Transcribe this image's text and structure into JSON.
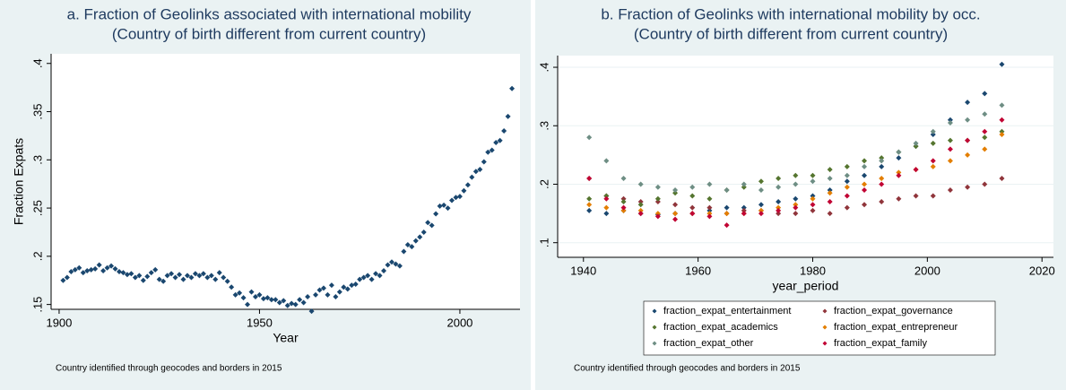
{
  "chart_data": [
    {
      "type": "scatter",
      "title": "a. Fraction of Geolinks associated with international mobility",
      "subtitle": "(Country of birth different from current country)",
      "x_label": "Year",
      "y_label": "Fraction Expats",
      "note": "Country identified through geocodes and borders in 2015",
      "color": "#1a476f",
      "grid": false,
      "xlim": [
        1898,
        2015
      ],
      "ylim": [
        0.145,
        0.41
      ],
      "xticks": [
        1900,
        1950,
        2000
      ],
      "yticks": [
        {
          "value": 0.15,
          "label": ".15"
        },
        {
          "value": 0.2,
          "label": ".2"
        },
        {
          "value": 0.25,
          "label": ".25"
        },
        {
          "value": 0.3,
          "label": ".3"
        },
        {
          "value": 0.35,
          "label": ".35"
        },
        {
          "value": 0.4,
          "label": ".4"
        }
      ],
      "x": [
        1901,
        1902,
        1903,
        1904,
        1905,
        1906,
        1907,
        1908,
        1909,
        1910,
        1911,
        1912,
        1913,
        1914,
        1915,
        1916,
        1917,
        1918,
        1919,
        1920,
        1921,
        1922,
        1923,
        1924,
        1925,
        1926,
        1927,
        1928,
        1929,
        1930,
        1931,
        1932,
        1933,
        1934,
        1935,
        1936,
        1937,
        1938,
        1939,
        1940,
        1941,
        1942,
        1943,
        1944,
        1945,
        1946,
        1947,
        1948,
        1949,
        1950,
        1951,
        1952,
        1953,
        1954,
        1955,
        1956,
        1957,
        1958,
        1959,
        1960,
        1961,
        1962,
        1963,
        1964,
        1965,
        1966,
        1967,
        1968,
        1969,
        1970,
        1971,
        1972,
        1973,
        1974,
        1975,
        1976,
        1977,
        1978,
        1979,
        1980,
        1981,
        1982,
        1983,
        1984,
        1985,
        1986,
        1987,
        1988,
        1989,
        1990,
        1991,
        1992,
        1993,
        1994,
        1995,
        1996,
        1997,
        1998,
        1999,
        2000,
        2001,
        2002,
        2003,
        2004,
        2005,
        2006,
        2007,
        2008,
        2009,
        2010,
        2011,
        2012,
        2013
      ],
      "values": [
        0.175,
        0.178,
        0.184,
        0.186,
        0.188,
        0.183,
        0.185,
        0.186,
        0.187,
        0.191,
        0.185,
        0.188,
        0.19,
        0.187,
        0.184,
        0.183,
        0.181,
        0.182,
        0.178,
        0.18,
        0.175,
        0.179,
        0.183,
        0.186,
        0.176,
        0.174,
        0.18,
        0.182,
        0.178,
        0.181,
        0.176,
        0.18,
        0.178,
        0.182,
        0.18,
        0.182,
        0.178,
        0.18,
        0.176,
        0.183,
        0.178,
        0.174,
        0.168,
        0.16,
        0.162,
        0.157,
        0.15,
        0.163,
        0.158,
        0.16,
        0.156,
        0.157,
        0.155,
        0.155,
        0.152,
        0.154,
        0.149,
        0.151,
        0.15,
        0.155,
        0.152,
        0.158,
        0.143,
        0.16,
        0.165,
        0.167,
        0.16,
        0.17,
        0.158,
        0.163,
        0.168,
        0.166,
        0.17,
        0.171,
        0.176,
        0.178,
        0.18,
        0.176,
        0.182,
        0.18,
        0.185,
        0.191,
        0.194,
        0.192,
        0.19,
        0.205,
        0.212,
        0.21,
        0.216,
        0.22,
        0.225,
        0.235,
        0.232,
        0.244,
        0.252,
        0.253,
        0.25,
        0.258,
        0.261,
        0.262,
        0.268,
        0.274,
        0.282,
        0.288,
        0.29,
        0.298,
        0.308,
        0.31,
        0.318,
        0.32,
        0.33,
        0.345,
        0.374
      ]
    },
    {
      "type": "scatter",
      "title": "b. Fraction of Geolinks with international mobility by occ.",
      "subtitle": "(Country of birth different from current country)",
      "x_label": "year_period",
      "note": "Country identified through geocodes and borders in 2015",
      "grid": true,
      "legend_position": "bottom",
      "xlim": [
        1935.5,
        2022
      ],
      "ylim": [
        0.075,
        0.42
      ],
      "xticks": [
        1940,
        1960,
        1980,
        2000,
        2020
      ],
      "yticks": [
        {
          "value": 0.1,
          "label": ".1"
        },
        {
          "value": 0.2,
          "label": ".2"
        },
        {
          "value": 0.3,
          "label": ".3"
        },
        {
          "value": 0.4,
          "label": ".4"
        }
      ],
      "x": [
        1941,
        1944,
        1947,
        1950,
        1953,
        1956,
        1959,
        1962,
        1965,
        1968,
        1971,
        1974,
        1977,
        1980,
        1983,
        1986,
        1989,
        1992,
        1995,
        1998,
        2001,
        2004,
        2007,
        2010,
        2013
      ],
      "series": [
        {
          "name": "fraction_expat_entertainment",
          "color": "#1a476f",
          "values": [
            0.155,
            0.15,
            0.155,
            0.15,
            0.148,
            0.15,
            0.15,
            0.155,
            0.16,
            0.16,
            0.165,
            0.17,
            0.175,
            0.18,
            0.19,
            0.205,
            0.215,
            0.23,
            0.245,
            0.265,
            0.285,
            0.31,
            0.34,
            0.355,
            0.405
          ]
        },
        {
          "name": "fraction_expat_governance",
          "color": "#90353b",
          "values": [
            0.21,
            0.18,
            0.175,
            0.17,
            0.17,
            0.165,
            0.16,
            0.16,
            0.15,
            0.155,
            0.155,
            0.15,
            0.15,
            0.155,
            0.15,
            0.16,
            0.165,
            0.17,
            0.175,
            0.18,
            0.18,
            0.19,
            0.195,
            0.2,
            0.21
          ]
        },
        {
          "name": "fraction_expat_academics",
          "color": "#55752f",
          "values": [
            0.175,
            0.18,
            0.17,
            0.165,
            0.175,
            0.185,
            0.18,
            0.175,
            0.19,
            0.195,
            0.205,
            0.21,
            0.215,
            0.215,
            0.225,
            0.23,
            0.24,
            0.245,
            0.255,
            0.265,
            0.27,
            0.275,
            0.275,
            0.28,
            0.29
          ]
        },
        {
          "name": "fraction_expat_entrepreneur",
          "color": "#e37e00",
          "values": [
            0.165,
            0.16,
            0.155,
            0.155,
            0.15,
            0.15,
            0.15,
            0.15,
            0.15,
            0.15,
            0.155,
            0.16,
            0.165,
            0.175,
            0.185,
            0.195,
            0.2,
            0.21,
            0.22,
            0.225,
            0.23,
            0.24,
            0.25,
            0.26,
            0.285
          ]
        },
        {
          "name": "fraction_expat_other",
          "color": "#6e8e84",
          "values": [
            0.28,
            0.24,
            0.21,
            0.2,
            0.195,
            0.19,
            0.195,
            0.2,
            0.19,
            0.2,
            0.19,
            0.195,
            0.2,
            0.205,
            0.21,
            0.215,
            0.23,
            0.24,
            0.255,
            0.27,
            0.29,
            0.305,
            0.31,
            0.32,
            0.335
          ]
        },
        {
          "name": "fraction_expat_family",
          "color": "#c10534",
          "values": [
            0.21,
            0.175,
            0.16,
            0.15,
            0.145,
            0.14,
            0.15,
            0.145,
            0.13,
            0.15,
            0.15,
            0.155,
            0.16,
            0.165,
            0.17,
            0.18,
            0.19,
            0.2,
            0.215,
            0.225,
            0.24,
            0.26,
            0.275,
            0.29,
            0.31
          ]
        }
      ]
    }
  ]
}
